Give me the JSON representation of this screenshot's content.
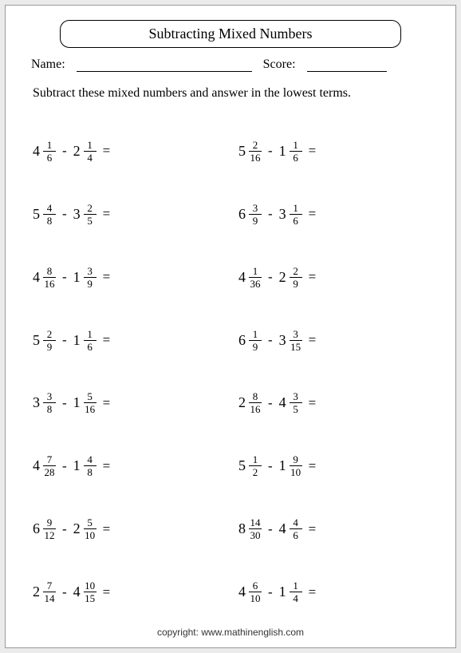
{
  "title": "Subtracting Mixed Numbers",
  "name_label": "Name:",
  "score_label": "Score:",
  "instruction": "Subtract these mixed numbers and answer in the lowest terms.",
  "minus": "-",
  "equals": "=",
  "copyright": "copyright:   www.mathinenglish.com",
  "problems": [
    {
      "a": {
        "w": "4",
        "n": "1",
        "d": "6"
      },
      "b": {
        "w": "2",
        "n": "1",
        "d": "4"
      }
    },
    {
      "a": {
        "w": "5",
        "n": "2",
        "d": "16"
      },
      "b": {
        "w": "1",
        "n": "1",
        "d": "6"
      }
    },
    {
      "a": {
        "w": "5",
        "n": "4",
        "d": "8"
      },
      "b": {
        "w": "3",
        "n": "2",
        "d": "5"
      }
    },
    {
      "a": {
        "w": "6",
        "n": "3",
        "d": "9"
      },
      "b": {
        "w": "3",
        "n": "1",
        "d": "6"
      }
    },
    {
      "a": {
        "w": "4",
        "n": "8",
        "d": "16"
      },
      "b": {
        "w": "1",
        "n": "3",
        "d": "9"
      }
    },
    {
      "a": {
        "w": "4",
        "n": "1",
        "d": "36"
      },
      "b": {
        "w": "2",
        "n": "2",
        "d": "9"
      }
    },
    {
      "a": {
        "w": "5",
        "n": "2",
        "d": "9"
      },
      "b": {
        "w": "1",
        "n": "1",
        "d": "6"
      }
    },
    {
      "a": {
        "w": "6",
        "n": "1",
        "d": "9"
      },
      "b": {
        "w": "3",
        "n": "3",
        "d": "15"
      }
    },
    {
      "a": {
        "w": "3",
        "n": "3",
        "d": "8"
      },
      "b": {
        "w": "1",
        "n": "5",
        "d": "16"
      }
    },
    {
      "a": {
        "w": "2",
        "n": "8",
        "d": "16"
      },
      "b": {
        "w": "4",
        "n": "3",
        "d": "5"
      }
    },
    {
      "a": {
        "w": "4",
        "n": "7",
        "d": "28"
      },
      "b": {
        "w": "1",
        "n": "4",
        "d": "8"
      }
    },
    {
      "a": {
        "w": "5",
        "n": "1",
        "d": "2"
      },
      "b": {
        "w": "1",
        "n": "9",
        "d": "10"
      }
    },
    {
      "a": {
        "w": "6",
        "n": "9",
        "d": "12"
      },
      "b": {
        "w": "2",
        "n": "5",
        "d": "10"
      }
    },
    {
      "a": {
        "w": "8",
        "n": "14",
        "d": "30"
      },
      "b": {
        "w": "4",
        "n": "4",
        "d": "6"
      }
    },
    {
      "a": {
        "w": "2",
        "n": "7",
        "d": "14"
      },
      "b": {
        "w": "4",
        "n": "10",
        "d": "15"
      }
    },
    {
      "a": {
        "w": "4",
        "n": "6",
        "d": "10"
      },
      "b": {
        "w": "1",
        "n": "1",
        "d": "4"
      }
    }
  ]
}
